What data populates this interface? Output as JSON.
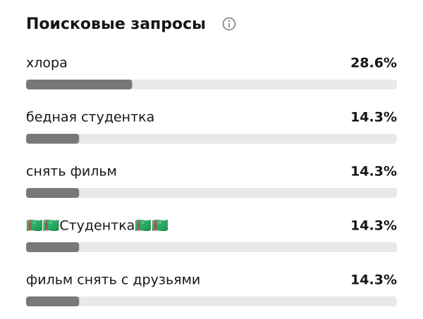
{
  "chart_data": {
    "type": "bar",
    "orientation": "horizontal",
    "title": "Поисковые запросы",
    "categories": [
      "хлора",
      "бедная студентка",
      "снять фильм",
      "🇹🇲🇹🇲Студентка🇹🇲🇹🇲",
      "фильм снять с друзьями"
    ],
    "values": [
      28.6,
      14.3,
      14.3,
      14.3,
      14.3
    ],
    "value_labels": [
      "28.6%",
      "14.3%",
      "14.3%",
      "14.3%",
      "14.3%"
    ],
    "xlim": [
      0,
      100
    ],
    "color": "#787878"
  }
}
